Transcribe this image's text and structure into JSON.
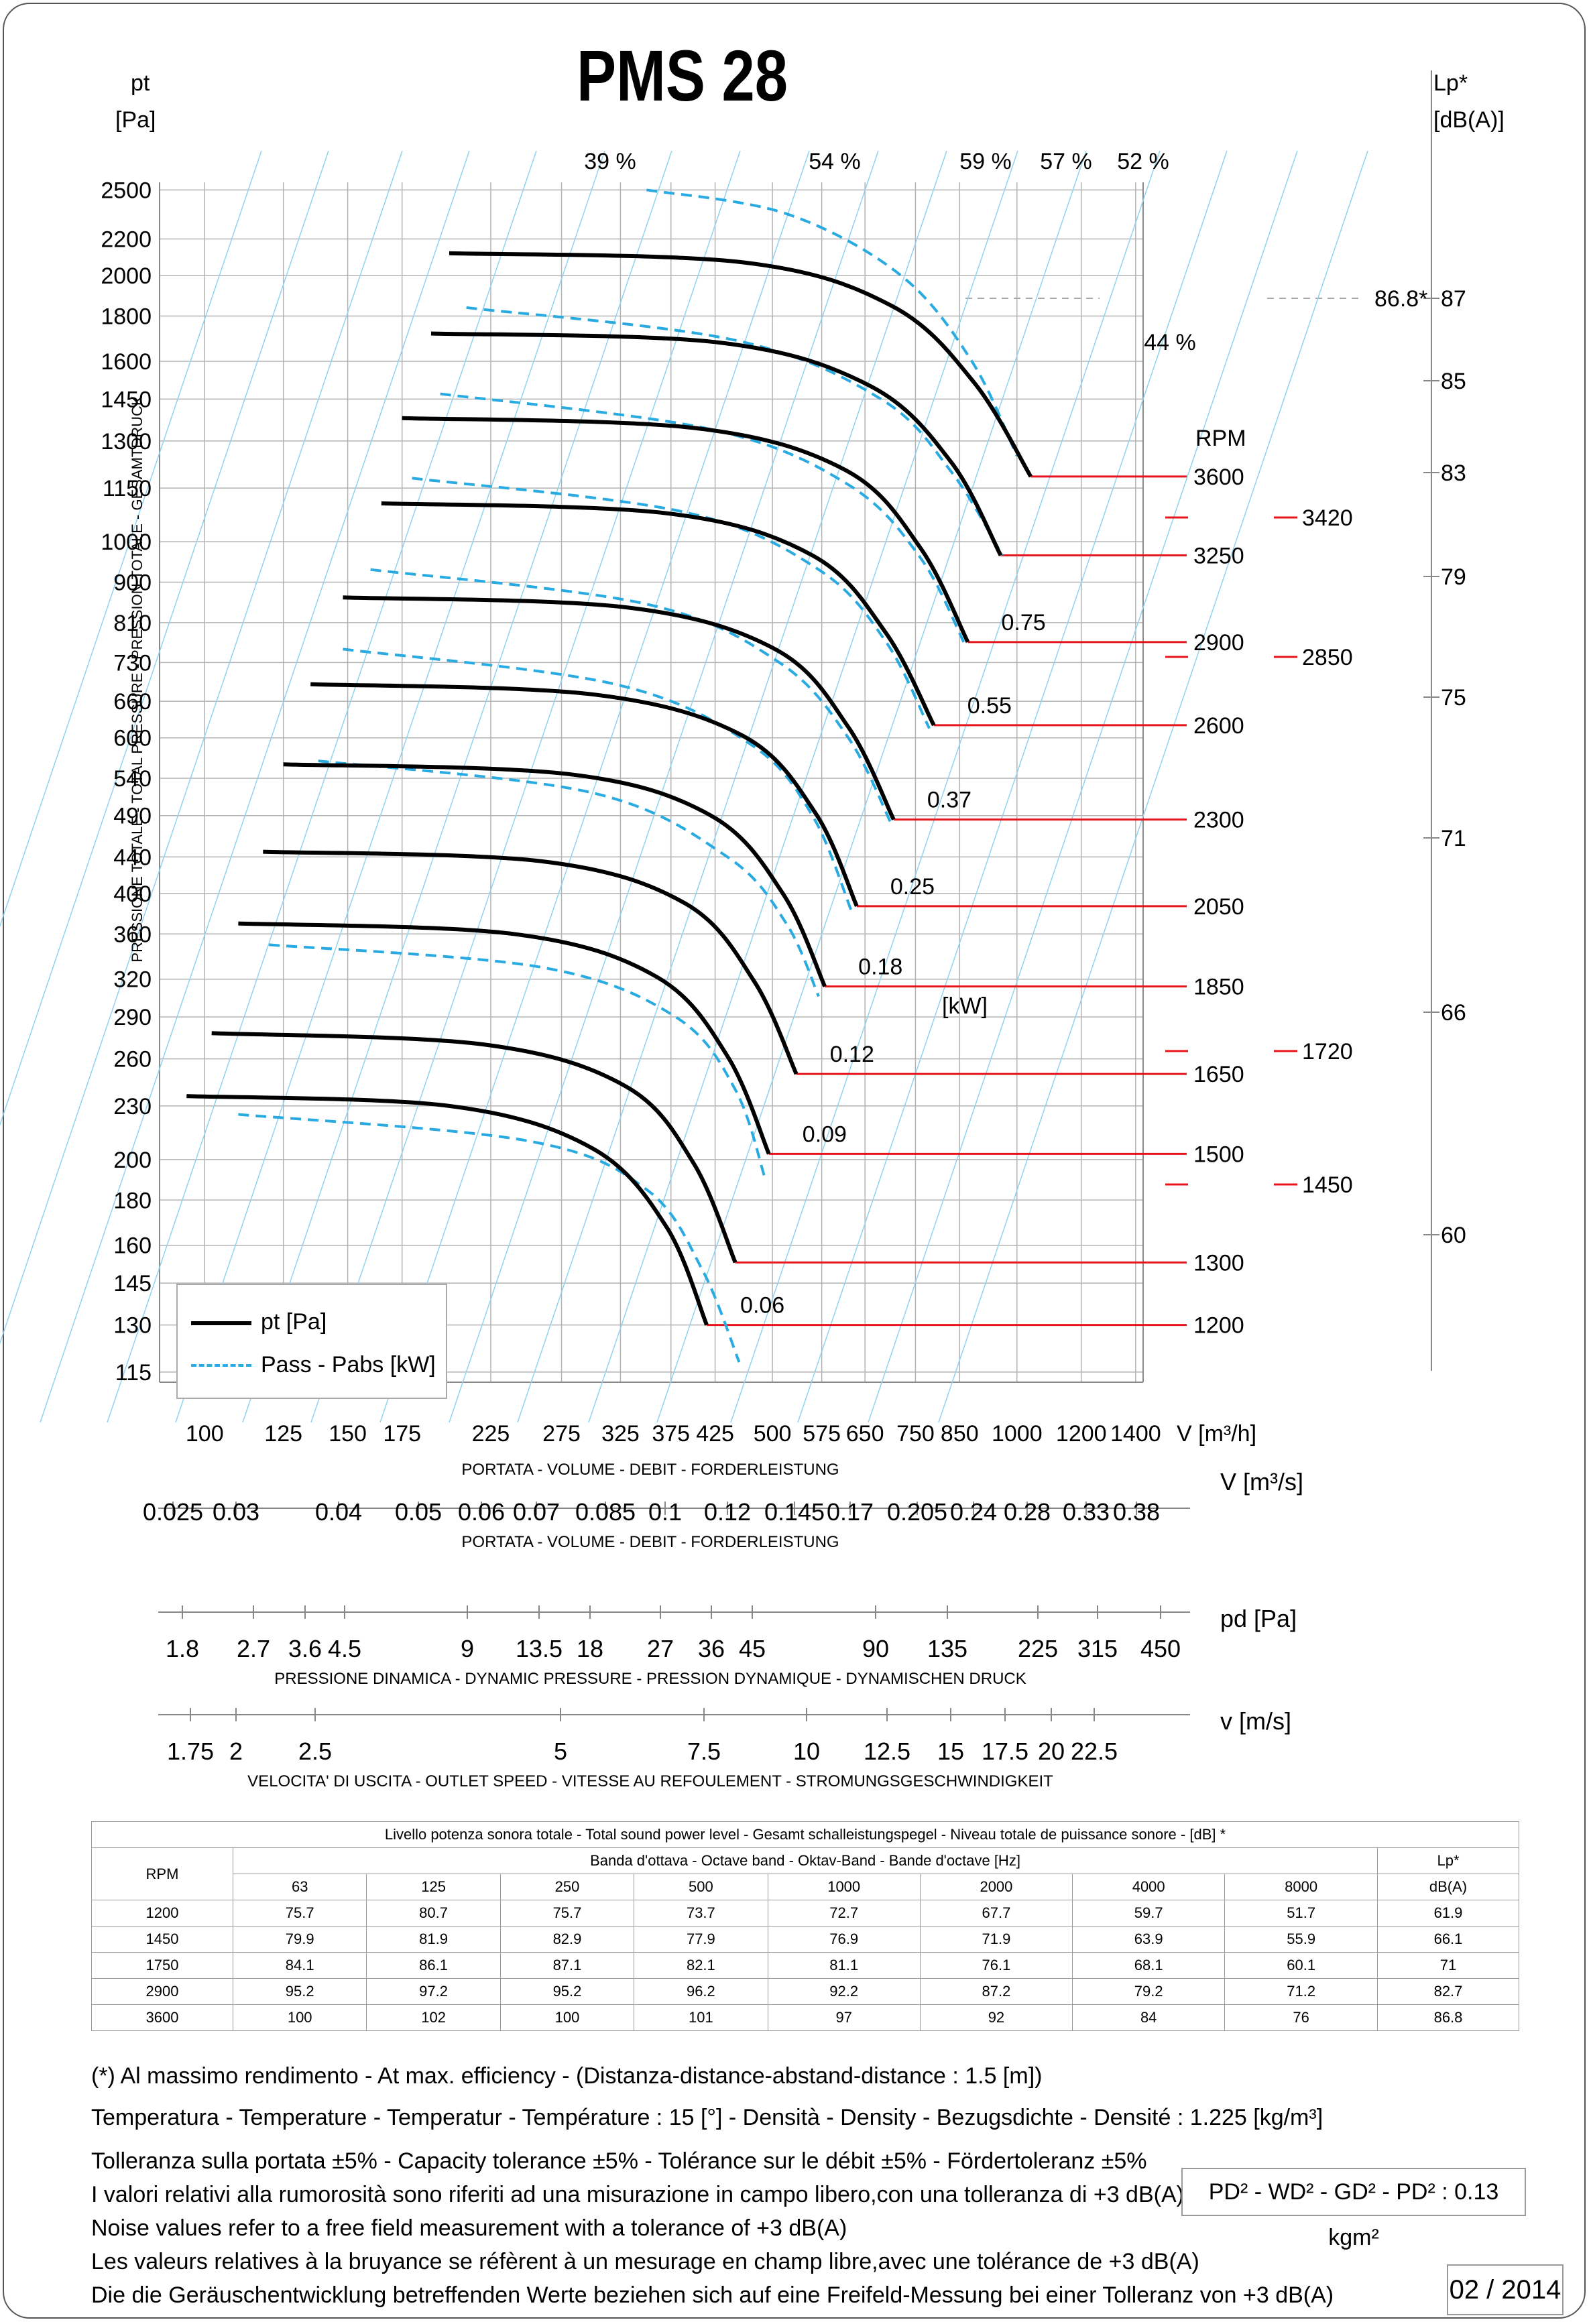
{
  "title": "PMS 28",
  "colors": {
    "pt_curve": "#000000",
    "power_curve": "#29abe2",
    "rpm_line": "#e8141b",
    "grid": "#b3b3b3",
    "efficiency_line": "#8fd3f0"
  },
  "axes": {
    "y_left_title": "pt",
    "y_left_unit": "[Pa]",
    "y_left_description": "PRESSIONE TOTALE - TOTAL PRESSURE - PRESSION TOTALE - GESAMTDRUCK",
    "y_left_ticks": [
      "2500",
      "2200",
      "2000",
      "1800",
      "1600",
      "1450",
      "1300",
      "1150",
      "1000",
      "900",
      "810",
      "730",
      "660",
      "600",
      "540",
      "490",
      "440",
      "400",
      "360",
      "320",
      "290",
      "260",
      "230",
      "200",
      "180",
      "160",
      "145",
      "130",
      "115"
    ],
    "y_right_title": "Lp*",
    "y_right_unit": "[dB(A)]",
    "y_right_ticks": [
      "87",
      "85",
      "83",
      "79",
      "75",
      "71",
      "66",
      "60"
    ],
    "x_main_unit": "V [m³/h]",
    "x_main_ticks": [
      "100",
      "125",
      "150",
      "175",
      "225",
      "275",
      "325",
      "375",
      "425",
      "500",
      "575",
      "650",
      "750",
      "850",
      "1000",
      "1200",
      "1400"
    ],
    "x_main_description": "PORTATA - VOLUME - DEBIT - FORDERLEISTUNG",
    "scale2_unit": "V  [m³/s]",
    "scale2_ticks": [
      "0.025",
      "0.03",
      "0.04",
      "0.05",
      "0.06",
      "0.07",
      "0.085",
      "0.1",
      "0.12",
      "0.145",
      "0.17",
      "0.205",
      "0.24",
      "0.28",
      "0.33",
      "0.38"
    ],
    "scale2_description": "PORTATA - VOLUME - DEBIT - FORDERLEISTUNG",
    "scale3_unit": "pd  [Pa]",
    "scale3_ticks": [
      "1.8",
      "2.7",
      "3.6",
      "4.5",
      "9",
      "13.5",
      "18",
      "27",
      "36",
      "45",
      "90",
      "135",
      "225",
      "315",
      "450"
    ],
    "scale3_description": "PRESSIONE DINAMICA - DYNAMIC PRESSURE - PRESSION DYNAMIQUE - DYNAMISCHEN DRUCK",
    "scale4_unit": "v  [m/s]",
    "scale4_ticks": [
      "1.75",
      "2",
      "2.5",
      "5",
      "7.5",
      "10",
      "12.5",
      "15",
      "17.5",
      "20",
      "22.5"
    ],
    "scale4_description": "VELOCITA' DI USCITA - OUTLET SPEED - VITESSE AU REFOULEMENT - STROMUNGSGESCHWINDIGKEIT"
  },
  "rpm_header": "RPM",
  "efficiency_labels": [
    "39 %",
    "54 %",
    "59 %",
    "57 %",
    "52 %",
    "44 %"
  ],
  "max_noise_label": "86.8*",
  "legend": {
    "pt": "pt [Pa]",
    "power": "Pass - Pabs [kW]"
  },
  "chart_data": {
    "type": "line",
    "x_unit": "m³/h",
    "y_unit": "Pa",
    "log_scale": true,
    "series": [
      {
        "rpm": "1200",
        "pt": [
          [
            95,
            236
          ],
          [
            200,
            230
          ],
          [
            300,
            206
          ],
          [
            370,
            168
          ],
          [
            415,
            130
          ]
        ],
        "power": "0.06",
        "power_curve": [
          [
            110,
            225
          ],
          [
            250,
            210
          ],
          [
            350,
            185
          ],
          [
            410,
            150
          ],
          [
            455,
            118
          ]
        ]
      },
      {
        "rpm": "1300",
        "pt": [
          [
            102,
            278
          ],
          [
            220,
            270
          ],
          [
            330,
            242
          ],
          [
            400,
            198
          ],
          [
            450,
            153
          ]
        ],
        "power": null,
        "power_curve": null
      },
      {
        "rpm": "1500",
        "pt": [
          [
            110,
            370
          ],
          [
            240,
            360
          ],
          [
            360,
            322
          ],
          [
            440,
            262
          ],
          [
            495,
            203
          ]
        ],
        "power": "0.09",
        "power_curve": [
          [
            120,
            350
          ],
          [
            260,
            330
          ],
          [
            380,
            290
          ],
          [
            450,
            240
          ],
          [
            490,
            190
          ]
        ]
      },
      {
        "rpm": "1650",
        "pt": [
          [
            118,
            446
          ],
          [
            260,
            435
          ],
          [
            390,
            390
          ],
          [
            475,
            318
          ],
          [
            535,
            250
          ]
        ],
        "power": "0.12",
        "power_curve": null
      },
      {
        "rpm": "1850",
        "pt": [
          [
            125,
            560
          ],
          [
            280,
            546
          ],
          [
            420,
            490
          ],
          [
            515,
            400
          ],
          [
            580,
            314
          ]
        ],
        "power": "0.18",
        "power_curve": [
          [
            138,
            565
          ],
          [
            300,
            520
          ],
          [
            440,
            440
          ],
          [
            520,
            370
          ],
          [
            570,
            306
          ]
        ]
      },
      {
        "rpm": "2050",
        "pt": [
          [
            135,
            690
          ],
          [
            300,
            672
          ],
          [
            460,
            603
          ],
          [
            565,
            493
          ],
          [
            635,
            387
          ]
        ],
        "power": "0.25",
        "power_curve": [
          [
            148,
            756
          ],
          [
            320,
            690
          ],
          [
            470,
            590
          ],
          [
            560,
            490
          ],
          [
            625,
            383
          ]
        ]
      },
      {
        "rpm": "2300",
        "pt": [
          [
            148,
            865
          ],
          [
            330,
            843
          ],
          [
            505,
            755
          ],
          [
            620,
            617
          ],
          [
            705,
            485
          ]
        ],
        "power": "0.37",
        "power_curve": [
          [
            160,
            930
          ],
          [
            350,
            850
          ],
          [
            510,
            730
          ],
          [
            620,
            600
          ],
          [
            700,
            480
          ]
        ]
      },
      {
        "rpm": "2600",
        "pt": [
          [
            165,
            1105
          ],
          [
            370,
            1077
          ],
          [
            560,
            965
          ],
          [
            690,
            788
          ],
          [
            790,
            620
          ]
        ],
        "power": "0.55",
        "power_curve": [
          [
            180,
            1180
          ],
          [
            390,
            1080
          ],
          [
            570,
            930
          ],
          [
            690,
            770
          ],
          [
            780,
            615
          ]
        ]
      },
      {
        "rpm": "2900",
        "pt": [
          [
            175,
            1380
          ],
          [
            400,
            1345
          ],
          [
            615,
            1205
          ],
          [
            760,
            985
          ],
          [
            870,
            770
          ]
        ],
        "power": "0.75",
        "power_curve": [
          [
            195,
            1470
          ],
          [
            420,
            1340
          ],
          [
            620,
            1160
          ],
          [
            760,
            960
          ],
          [
            860,
            770
          ]
        ]
      },
      {
        "rpm": "3250",
        "pt": [
          [
            190,
            1720
          ],
          [
            430,
            1680
          ],
          [
            660,
            1500
          ],
          [
            830,
            1230
          ],
          [
            955,
            965
          ]
        ],
        "power": null,
        "power_curve": [
          [
            210,
            1840
          ],
          [
            450,
            1690
          ],
          [
            680,
            1450
          ],
          [
            830,
            1200
          ],
          [
            960,
            965
          ]
        ]
      },
      {
        "rpm": "3600",
        "pt": [
          [
            200,
            2120
          ],
          [
            460,
            2070
          ],
          [
            700,
            1850
          ],
          [
            885,
            1515
          ],
          [
            1040,
            1185
          ]
        ],
        "power": null,
        "power_curve": [
          [
            350,
            2500
          ],
          [
            520,
            2350
          ],
          [
            720,
            2000
          ],
          [
            880,
            1600
          ],
          [
            1000,
            1250
          ]
        ]
      }
    ],
    "right_rpm_labels": [
      "3420",
      "2850",
      "1720",
      "1450"
    ]
  },
  "sound_table": {
    "title": "Livello potenza sonora totale - Total sound power level - Gesamt schalleistungspegel - Niveau totale de puissance sonore - [dB]   *",
    "band_header": "Banda d'ottava - Octave band - Oktav-Band - Bande d'octave [Hz]",
    "rpm_header": "RPM",
    "lp_header": "Lp*",
    "lp_unit": "dB(A)",
    "bands": [
      "63",
      "125",
      "250",
      "500",
      "1000",
      "2000",
      "4000",
      "8000"
    ],
    "rows": [
      {
        "rpm": "1200",
        "values": [
          "75.7",
          "80.7",
          "75.7",
          "73.7",
          "72.7",
          "67.7",
          "59.7",
          "51.7"
        ],
        "lp": "61.9"
      },
      {
        "rpm": "1450",
        "values": [
          "79.9",
          "81.9",
          "82.9",
          "77.9",
          "76.9",
          "71.9",
          "63.9",
          "55.9"
        ],
        "lp": "66.1"
      },
      {
        "rpm": "1750",
        "values": [
          "84.1",
          "86.1",
          "87.1",
          "82.1",
          "81.1",
          "76.1",
          "68.1",
          "60.1"
        ],
        "lp": "71"
      },
      {
        "rpm": "2900",
        "values": [
          "95.2",
          "97.2",
          "95.2",
          "96.2",
          "92.2",
          "87.2",
          "79.2",
          "71.2"
        ],
        "lp": "82.7"
      },
      {
        "rpm": "3600",
        "values": [
          "100",
          "102",
          "100",
          "101",
          "97",
          "92",
          "84",
          "76"
        ],
        "lp": "86.8"
      }
    ]
  },
  "notes": {
    "line1": "(*) Al massimo rendimento - At max. efficiency - (Distanza-distance-abstand-distance : 1.5 [m])",
    "line2": "Temperatura - Temperature - Temperatur - Température : 15 [°]  -  Densità - Density - Bezugsdichte - Densité : 1.225 [kg/m³]",
    "line3": "Tolleranza sulla portata  ±5% - Capacity tolerance ±5% - Tolérance sur le débit ±5% - Fördertoleranz ±5%",
    "line4": "I valori relativi alla rumorosità sono riferiti ad una misurazione in campo libero,con una tolleranza di +3 dB(A)",
    "line5": "Noise values refer to a free field measurement with a tolerance of +3 dB(A)",
    "line6": "Les valeurs relatives à la bruyance se réfèrent à un mesurage en champ libre,avec une tolérance de +3 dB(A)",
    "line7": "Die die Geräuschentwicklung betreffenden Werte beziehen sich auf eine Freifeld-Messung bei einer Tolleranz von +3 dB(A)",
    "pd2": "PD² -  WD² - GD² -  PD²  :  0.13 kgm²",
    "date": "02 / 2014"
  }
}
